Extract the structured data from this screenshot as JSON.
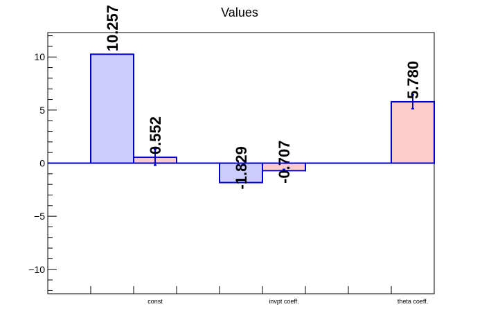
{
  "chart_data": {
    "type": "bar",
    "title": "Values",
    "xlabel": "",
    "ylabel": "",
    "categories": [
      "const",
      "invpt coeff.",
      "theta coeff."
    ],
    "ylim": [
      -12.3,
      12.3
    ],
    "yticks": [
      -10,
      -5,
      0,
      5,
      10
    ],
    "grid": false,
    "series": [
      {
        "fill": "#ccccff",
        "stroke": "#0000cc",
        "bars": [
          {
            "category": "const",
            "value": 10.257,
            "label": "10.257"
          },
          {
            "category": "invpt coeff.",
            "value": -1.829,
            "label": "-1.829"
          }
        ]
      },
      {
        "fill": "#ffcccc",
        "stroke": "#0000cc",
        "bars": [
          {
            "category": "const",
            "value": 0.552,
            "label": "0.552",
            "error": 0.75
          },
          {
            "category": "invpt coeff.",
            "value": -0.707,
            "label": "-0.707",
            "error": 0.12
          },
          {
            "category": "theta coeff.",
            "value": 5.78,
            "label": "5.780",
            "error": 0.65
          }
        ]
      }
    ]
  }
}
